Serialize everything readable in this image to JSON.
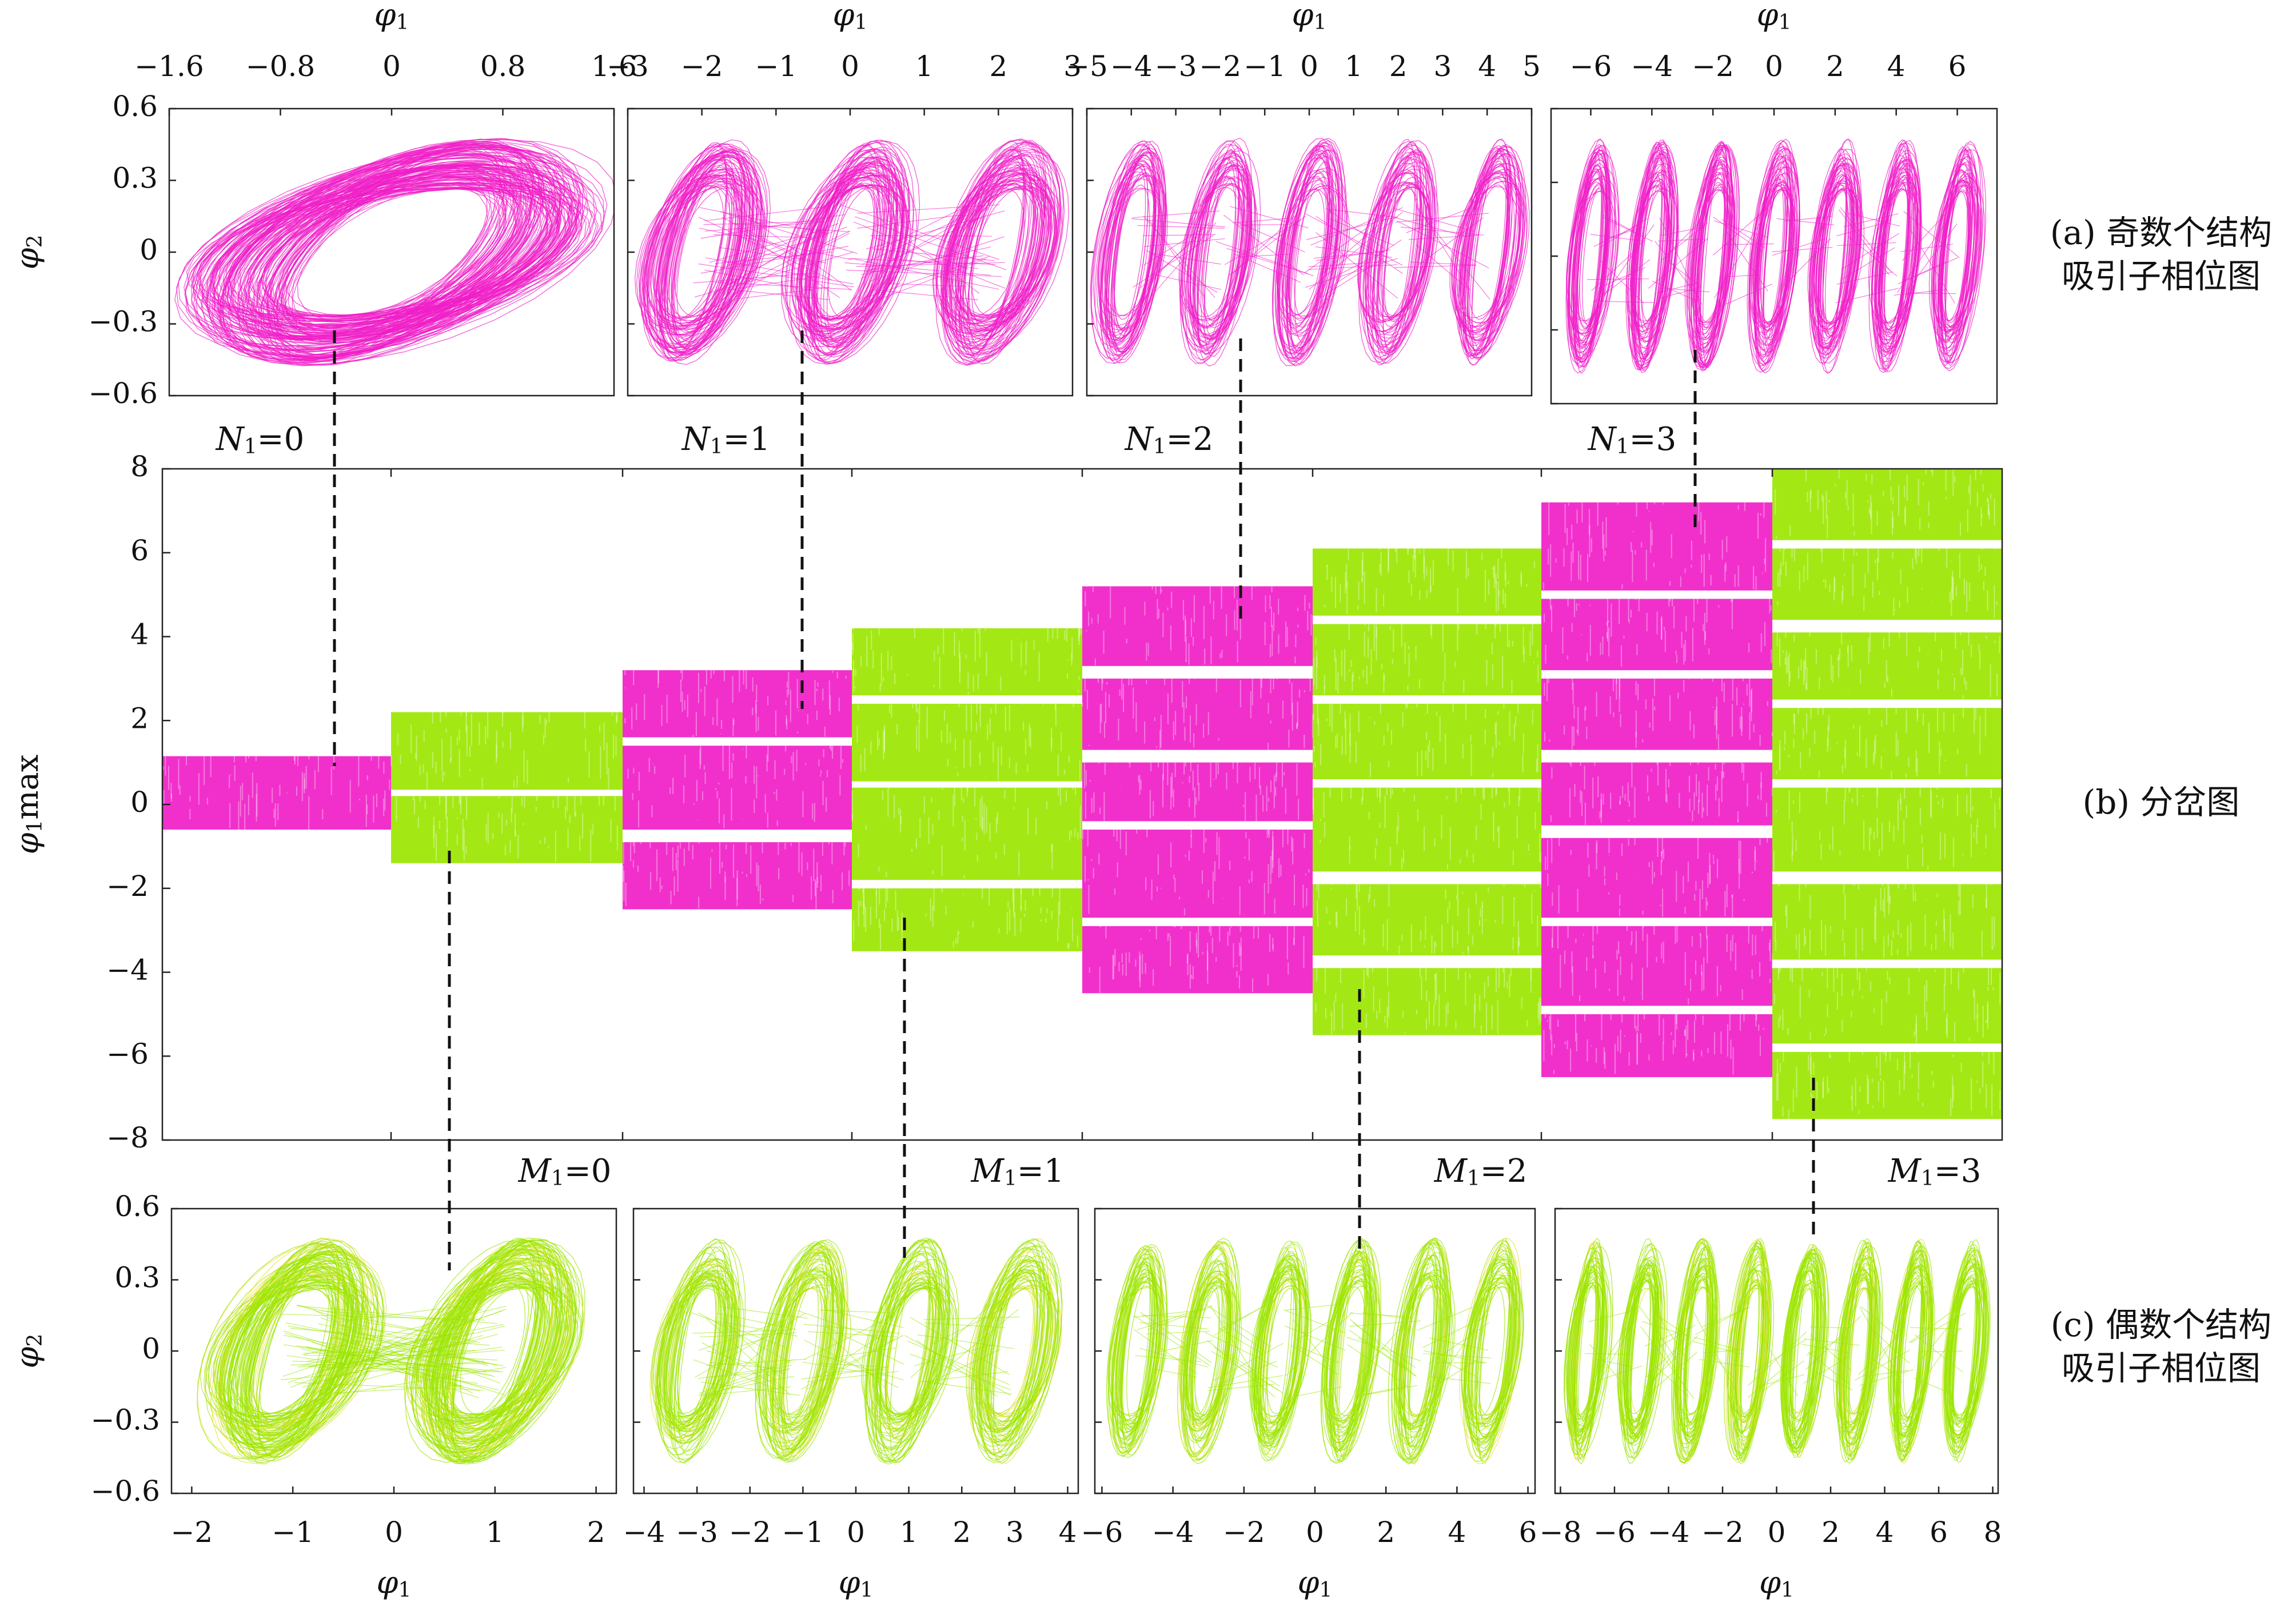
{
  "colors": {
    "odd": "#f01ec8",
    "even": "#9be600",
    "even_edge": "#e8e030"
  },
  "chart_data": [
    {
      "type": "scatter",
      "title": "",
      "xlabel": "φ1",
      "ylabel": "φ2",
      "ylim": [
        -0.6,
        0.6
      ],
      "yticks": [
        0.6,
        0.3,
        0,
        -0.3,
        -0.6
      ],
      "ytick_labels": [
        "0.6",
        "0.3",
        "0",
        "−0.3",
        "−0.6"
      ],
      "caption": [
        "(a) 奇数个结构",
        "吸引子相位图"
      ],
      "panels": [
        {
          "xlim": [
            -1.6,
            1.6
          ],
          "xticks": [
            -1.6,
            -0.8,
            0,
            0.8,
            1.6
          ],
          "xtick_labels": [
            "−1.6",
            "−0.8",
            "0",
            "0.8",
            "1.6"
          ],
          "lobes": [
            0
          ],
          "trajectory_color": "odd"
        },
        {
          "xlim": [
            -3,
            3
          ],
          "xticks": [
            -3,
            -2,
            -1,
            0,
            1,
            2,
            3
          ],
          "xtick_labels": [
            "−3",
            "−2",
            "−1",
            "0",
            "1",
            "2",
            "3"
          ],
          "lobes": [
            -2,
            0,
            2
          ],
          "trajectory_color": "odd"
        },
        {
          "xlim": [
            -5,
            5
          ],
          "xticks": [
            -5,
            -4,
            -3,
            -2,
            -1,
            0,
            1,
            2,
            3,
            4,
            5
          ],
          "xtick_labels": [
            "−5",
            "−4",
            "−3",
            "−2",
            "−1",
            "0",
            "1",
            "2",
            "3",
            "4",
            "5"
          ],
          "lobes": [
            -4,
            -2,
            0,
            2,
            4
          ],
          "trajectory_color": "odd"
        },
        {
          "xlim": [
            -7.3,
            7.3
          ],
          "xticks": [
            -6,
            -4,
            -2,
            0,
            2,
            4,
            6
          ],
          "xtick_labels": [
            "−6",
            "−4",
            "−2",
            "0",
            "2",
            "4",
            "6"
          ],
          "lobes": [
            -6,
            -4,
            -2,
            0,
            2,
            4,
            6
          ],
          "trajectory_color": "odd"
        }
      ]
    },
    {
      "type": "scatter",
      "title": "",
      "xlabel": "",
      "ylabel": "φ1max",
      "ylim": [
        -8,
        8
      ],
      "yticks": [
        8,
        6,
        4,
        2,
        0,
        -2,
        -4,
        -6,
        -8
      ],
      "ytick_labels": [
        "8",
        "6",
        "4",
        "2",
        "0",
        "−2",
        "−4",
        "−6",
        "−8"
      ],
      "caption": [
        "(b) 分岔图"
      ],
      "n_labels": [
        "N1=0",
        "N1=1",
        "N1=2",
        "N1=3"
      ],
      "m_labels": [
        "M1=0",
        "M1=1",
        "M1=2",
        "M1=3"
      ],
      "segments": [
        {
          "kind": "odd",
          "extent": [
            -0.6,
            1.15
          ],
          "bands": [
            [
              -0.6,
              1.15
            ]
          ]
        },
        {
          "kind": "even",
          "extent": [
            -1.4,
            2.2
          ],
          "bands": [
            [
              -1.4,
              0.2
            ],
            [
              0.35,
              2.2
            ]
          ]
        },
        {
          "kind": "odd",
          "extent": [
            -2.5,
            3.2
          ],
          "bands": [
            [
              -2.5,
              -0.9
            ],
            [
              -0.6,
              1.4
            ],
            [
              1.6,
              3.2
            ]
          ]
        },
        {
          "kind": "even",
          "extent": [
            -3.5,
            4.2
          ],
          "bands": [
            [
              -3.5,
              -2.0
            ],
            [
              -1.8,
              0.4
            ],
            [
              0.55,
              2.4
            ],
            [
              2.6,
              4.2
            ]
          ]
        },
        {
          "kind": "odd",
          "extent": [
            -4.5,
            5.2
          ],
          "bands": [
            [
              -4.5,
              -2.9
            ],
            [
              -2.7,
              -0.6
            ],
            [
              -0.4,
              1.0
            ],
            [
              1.3,
              3.0
            ],
            [
              3.3,
              5.2
            ]
          ]
        },
        {
          "kind": "even",
          "extent": [
            -5.5,
            6.1
          ],
          "bands": [
            [
              -5.5,
              -3.9
            ],
            [
              -3.6,
              -1.9
            ],
            [
              -1.6,
              0.4
            ],
            [
              0.6,
              2.4
            ],
            [
              2.6,
              4.3
            ],
            [
              4.5,
              6.1
            ]
          ]
        },
        {
          "kind": "odd",
          "extent": [
            -6.5,
            7.2
          ],
          "bands": [
            [
              -6.5,
              -5.0
            ],
            [
              -4.8,
              -2.9
            ],
            [
              -2.7,
              -0.8
            ],
            [
              -0.5,
              1.0
            ],
            [
              1.3,
              3.0
            ],
            [
              3.2,
              4.9
            ],
            [
              5.1,
              7.2
            ]
          ]
        },
        {
          "kind": "even",
          "extent": [
            -7.5,
            8.0
          ],
          "bands": [
            [
              -7.5,
              -5.9
            ],
            [
              -5.7,
              -3.9
            ],
            [
              -3.7,
              -1.9
            ],
            [
              -1.6,
              0.4
            ],
            [
              0.6,
              2.3
            ],
            [
              2.5,
              4.1
            ],
            [
              4.4,
              6.1
            ],
            [
              6.3,
              8.0
            ]
          ]
        }
      ]
    },
    {
      "type": "scatter",
      "title": "",
      "xlabel": "φ1",
      "ylabel": "φ2",
      "ylim": [
        -0.6,
        0.6
      ],
      "yticks": [
        0.6,
        0.3,
        0,
        -0.3,
        -0.6
      ],
      "ytick_labels": [
        "0.6",
        "0.3",
        "0",
        "−0.3",
        "−0.6"
      ],
      "caption": [
        "(c) 偶数个结构",
        "吸引子相位图"
      ],
      "panels": [
        {
          "xlim": [
            -2.2,
            2.2
          ],
          "xticks": [
            -2,
            -1,
            0,
            1,
            2
          ],
          "xtick_labels": [
            "−2",
            "−1",
            "0",
            "1",
            "2"
          ],
          "lobes": [
            -1,
            1
          ],
          "trajectory_color": "even"
        },
        {
          "xlim": [
            -4.2,
            4.2
          ],
          "xticks": [
            -4,
            -3,
            -2,
            -1,
            0,
            1,
            2,
            3,
            4
          ],
          "xtick_labels": [
            "−4",
            "−3",
            "−2",
            "−1",
            "0",
            "1",
            "2",
            "3",
            "4"
          ],
          "lobes": [
            -3,
            -1,
            1,
            3
          ],
          "trajectory_color": "even"
        },
        {
          "xlim": [
            -6.2,
            6.2
          ],
          "xticks": [
            -6,
            -4,
            -2,
            0,
            2,
            4,
            6
          ],
          "xtick_labels": [
            "−6",
            "−4",
            "−2",
            "0",
            "2",
            "4",
            "6"
          ],
          "lobes": [
            -5,
            -3,
            -1,
            1,
            3,
            5
          ],
          "trajectory_color": "even"
        },
        {
          "xlim": [
            -8.2,
            8.2
          ],
          "xticks": [
            -8,
            -6,
            -4,
            -2,
            0,
            2,
            4,
            6,
            8
          ],
          "xtick_labels": [
            "−8",
            "−6",
            "−4",
            "−2",
            "0",
            "2",
            "4",
            "6",
            "8"
          ],
          "lobes": [
            -7,
            -5,
            -3,
            -1,
            1,
            3,
            5,
            7
          ],
          "trajectory_color": "even"
        }
      ]
    }
  ]
}
